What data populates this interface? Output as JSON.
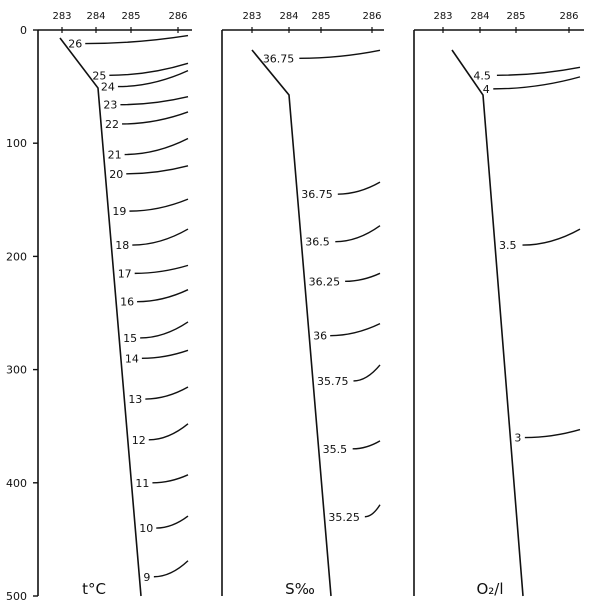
{
  "chart_data": [
    {
      "type": "line",
      "panel_label": "t°C",
      "x_ticks": [
        "283",
        "284",
        "285",
        "286"
      ],
      "y_ticks": [
        "0",
        "100",
        "200",
        "300",
        "400",
        "500"
      ],
      "ylim": [
        0,
        500
      ],
      "isolines": [
        {
          "label": "26",
          "depth": 12
        },
        {
          "label": "25",
          "depth": 40
        },
        {
          "label": "24",
          "depth": 50
        },
        {
          "label": "23",
          "depth": 66
        },
        {
          "label": "22",
          "depth": 83
        },
        {
          "label": "21",
          "depth": 110
        },
        {
          "label": "20",
          "depth": 127
        },
        {
          "label": "19",
          "depth": 160
        },
        {
          "label": "18",
          "depth": 190
        },
        {
          "label": "17",
          "depth": 215
        },
        {
          "label": "16",
          "depth": 240
        },
        {
          "label": "15",
          "depth": 272
        },
        {
          "label": "14",
          "depth": 290
        },
        {
          "label": "13",
          "depth": 326
        },
        {
          "label": "12",
          "depth": 362
        },
        {
          "label": "11",
          "depth": 400
        },
        {
          "label": "10",
          "depth": 440
        },
        {
          "label": "9",
          "depth": 483
        }
      ]
    },
    {
      "type": "line",
      "panel_label": "S‰",
      "x_ticks": [
        "283",
        "284",
        "285",
        "286"
      ],
      "isolines": [
        {
          "label": "36.75",
          "depth": 25
        },
        {
          "label": "36.75",
          "depth": 145
        },
        {
          "label": "36.5",
          "depth": 187
        },
        {
          "label": "36.25",
          "depth": 222
        },
        {
          "label": "36",
          "depth": 270
        },
        {
          "label": "35.75",
          "depth": 310
        },
        {
          "label": "35.5",
          "depth": 370
        },
        {
          "label": "35.25",
          "depth": 430
        }
      ]
    },
    {
      "type": "line",
      "panel_label": "O₂/l",
      "x_ticks": [
        "283",
        "284",
        "285",
        "286"
      ],
      "isolines": [
        {
          "label": "4.5",
          "depth": 40
        },
        {
          "label": "4",
          "depth": 52
        },
        {
          "label": "3.5",
          "depth": 190
        },
        {
          "label": "3",
          "depth": 360
        }
      ]
    }
  ]
}
